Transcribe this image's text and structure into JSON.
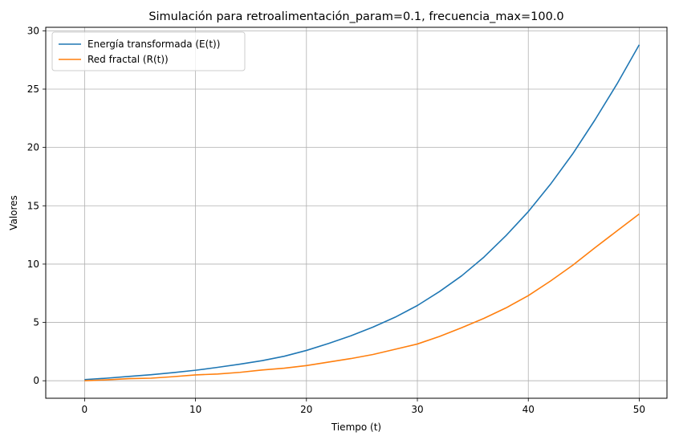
{
  "chart_data": {
    "type": "line",
    "title": "Simulación para retroalimentación_param=0.1, frecuencia_max=100.0",
    "xlabel": "Tiempo (t)",
    "ylabel": "Valores",
    "xlim": [
      -3.5,
      52.5
    ],
    "ylim": [
      -1.5,
      30.3
    ],
    "xticks": [
      0,
      10,
      20,
      30,
      40,
      50
    ],
    "yticks": [
      0,
      5,
      10,
      15,
      20,
      25,
      30
    ],
    "grid": true,
    "legend_position": "top-left",
    "series": [
      {
        "name": "Energía transformada (E(t))",
        "color": "#1f77b4",
        "x": [
          0,
          2,
          4,
          6,
          8,
          10,
          12,
          14,
          16,
          18,
          20,
          22,
          24,
          26,
          28,
          30,
          32,
          34,
          36,
          38,
          40,
          42,
          44,
          46,
          48,
          50
        ],
        "y": [
          0.1,
          0.22,
          0.37,
          0.52,
          0.7,
          0.9,
          1.15,
          1.42,
          1.72,
          2.1,
          2.6,
          3.2,
          3.85,
          4.6,
          5.45,
          6.45,
          7.65,
          9.0,
          10.6,
          12.45,
          14.5,
          16.85,
          19.45,
          22.35,
          25.45,
          28.8
        ]
      },
      {
        "name": "Red fractal (R(t))",
        "color": "#ff7f0e",
        "x": [
          0,
          2,
          4,
          6,
          8,
          10,
          12,
          14,
          16,
          18,
          20,
          22,
          24,
          26,
          28,
          30,
          32,
          34,
          36,
          38,
          40,
          42,
          44,
          46,
          48,
          50
        ],
        "y": [
          0.0,
          0.08,
          0.18,
          0.22,
          0.35,
          0.5,
          0.58,
          0.72,
          0.92,
          1.08,
          1.3,
          1.6,
          1.9,
          2.25,
          2.7,
          3.15,
          3.8,
          4.55,
          5.35,
          6.25,
          7.3,
          8.55,
          9.9,
          11.4,
          12.85,
          14.3
        ]
      }
    ]
  }
}
